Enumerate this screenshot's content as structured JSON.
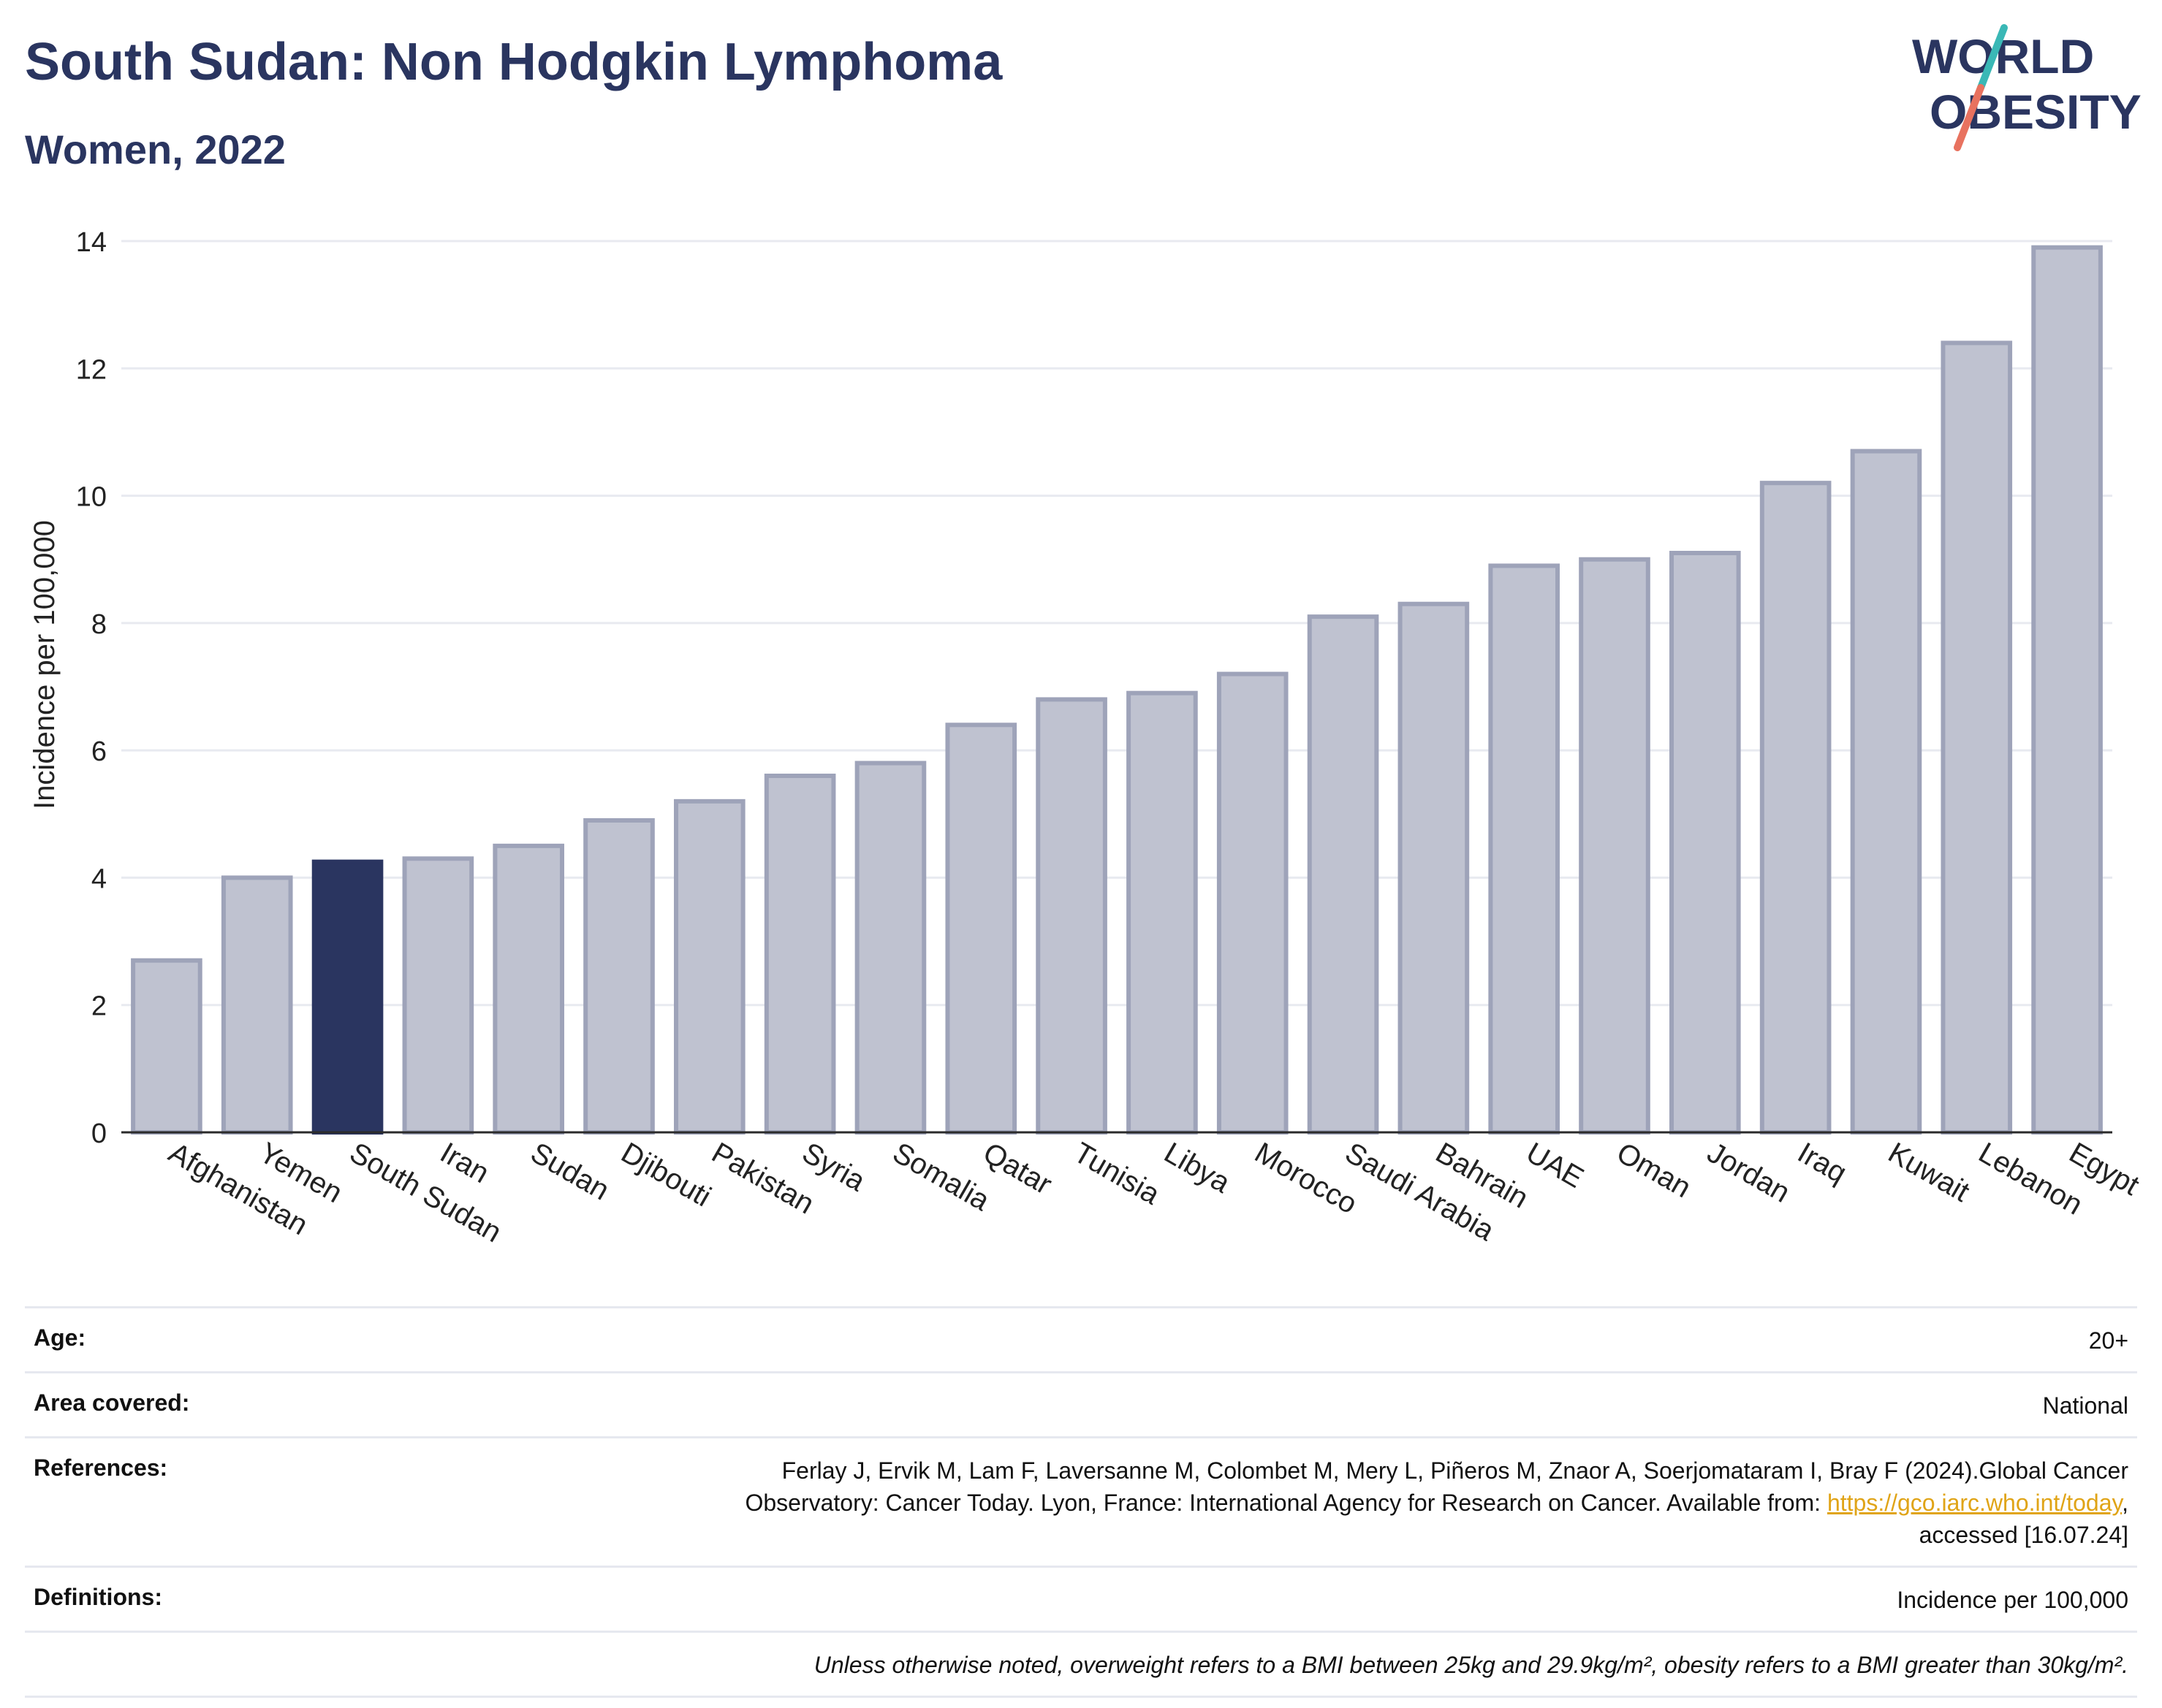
{
  "header": {
    "title": "South Sudan: Non Hodgkin Lymphoma",
    "subtitle": "Women, 2022"
  },
  "logo": {
    "line1": "WORLD",
    "line2": "OBESITY"
  },
  "colors": {
    "bar": "#bfc2d0",
    "bar_border": "#9ea3b9",
    "highlight": "#2a3560",
    "grid": "#e8eaf0",
    "axis": "#2a2a2a",
    "logo_teal": "#3ab8b6",
    "logo_coral": "#e8725f",
    "logo_text": "#2a3560"
  },
  "chart_data": {
    "type": "bar",
    "title": "South Sudan: Non Hodgkin Lymphoma",
    "subtitle": "Women, 2022",
    "xlabel": "",
    "ylabel": "Incidence per 100,000",
    "ylim": [
      0,
      14
    ],
    "yticks": [
      0,
      2,
      4,
      6,
      8,
      10,
      12,
      14
    ],
    "grid": true,
    "highlight": "South Sudan",
    "categories": [
      "Afghanistan",
      "Yemen",
      "South Sudan",
      "Iran",
      "Sudan",
      "Djibouti",
      "Pakistan",
      "Syria",
      "Somalia",
      "Qatar",
      "Tunisia",
      "Libya",
      "Morocco",
      "Saudi Arabia",
      "Bahrain",
      "UAE",
      "Oman",
      "Jordan",
      "Iraq",
      "Kuwait",
      "Lebanon",
      "Egypt"
    ],
    "values": [
      2.7,
      4.0,
      4.25,
      4.3,
      4.5,
      4.9,
      5.2,
      5.6,
      5.8,
      6.4,
      6.8,
      6.9,
      7.2,
      8.1,
      8.3,
      8.9,
      9.0,
      9.1,
      10.2,
      10.7,
      12.4,
      13.9
    ]
  },
  "details": {
    "age_label": "Age:",
    "age_value": "20+",
    "area_label": "Area covered:",
    "area_value": "National",
    "references_label": "References:",
    "references_text_1": "Ferlay J, Ervik M, Lam F, Laversanne M, Colombet M, Mery L, Piñeros M, Znaor A, Soerjomataram I, Bray F (2024).Global Cancer",
    "references_text_2": "Observatory: Cancer Today. Lyon, France: International Agency for Research on Cancer. Available from: ",
    "references_link": "https://gco.iarc.who.int/today",
    "references_text_3": ",",
    "references_text_4": "accessed [16.07.24]",
    "definitions_label": "Definitions:",
    "definitions_value": "Incidence per 100,000",
    "note": "Unless otherwise noted, overweight refers to a BMI between 25kg and 29.9kg/m², obesity refers to a BMI greater than 30kg/m²."
  }
}
